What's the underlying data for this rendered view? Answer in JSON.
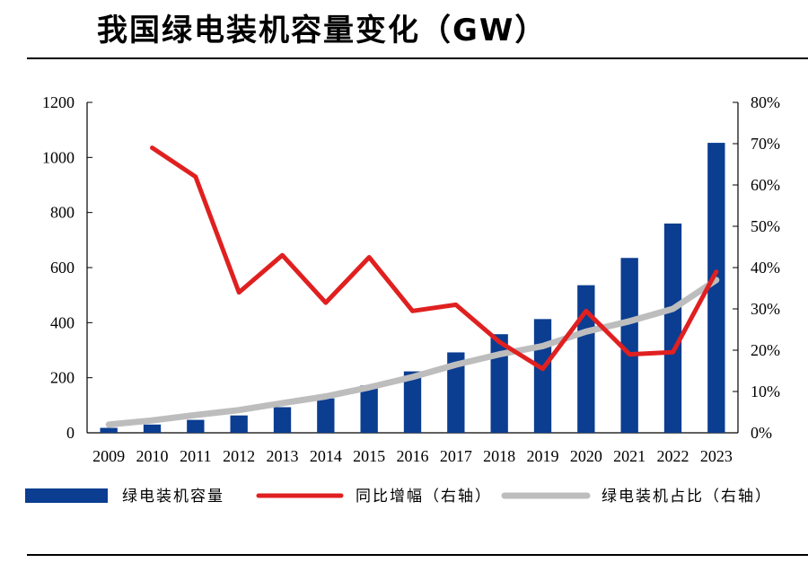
{
  "title": "我国绿电装机容量变化（GW）",
  "chart_data": {
    "type": "bar",
    "title": "我国绿电装机容量变化（GW）",
    "categories": [
      "2009",
      "2010",
      "2011",
      "2012",
      "2013",
      "2014",
      "2015",
      "2016",
      "2017",
      "2018",
      "2019",
      "2020",
      "2021",
      "2022",
      "2023"
    ],
    "y_left": {
      "ticks": [
        "0",
        "200",
        "400",
        "600",
        "800",
        "1000",
        "1200"
      ],
      "ylim": [
        0,
        1200
      ]
    },
    "y_right": {
      "ticks": [
        "0%",
        "10%",
        "20%",
        "30%",
        "40%",
        "50%",
        "60%",
        "70%",
        "80%"
      ],
      "ylim": [
        0,
        0.8
      ]
    },
    "series": [
      {
        "name": "绿电装机容量",
        "type": "bar",
        "axis": "left",
        "color": "#0b3d91",
        "values": [
          18,
          30,
          47,
          63,
          93,
          125,
          172,
          223,
          292,
          358,
          413,
          536,
          635,
          760,
          1053
        ]
      },
      {
        "name": "同比增幅（右轴）",
        "type": "line",
        "axis": "right",
        "color": "#e02020",
        "values": [
          null,
          0.69,
          0.62,
          0.34,
          0.43,
          0.315,
          0.425,
          0.295,
          0.31,
          0.22,
          0.155,
          0.295,
          0.19,
          0.195,
          0.39
        ]
      },
      {
        "name": "绿电装机占比（右轴）",
        "type": "line",
        "axis": "right",
        "color": "#bdbdbd",
        "values": [
          0.02,
          0.03,
          0.043,
          0.055,
          0.072,
          0.088,
          0.11,
          0.135,
          0.165,
          0.19,
          0.21,
          0.245,
          0.27,
          0.3,
          0.37
        ]
      }
    ],
    "legend_position": "bottom",
    "grid": false
  }
}
